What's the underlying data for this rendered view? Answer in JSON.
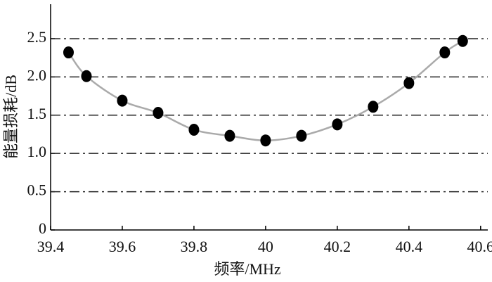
{
  "chart_data": {
    "type": "scatter",
    "x_label": "频率/MHz",
    "y_label": "能量损耗/dB",
    "x": [
      39.45,
      39.5,
      39.6,
      39.7,
      39.8,
      39.9,
      40.0,
      40.1,
      40.2,
      40.3,
      40.4,
      40.5,
      40.55
    ],
    "values": [
      2.32,
      2.01,
      1.69,
      1.53,
      1.31,
      1.23,
      1.17,
      1.23,
      1.38,
      1.61,
      1.92,
      2.32,
      2.47
    ],
    "color": "#000000",
    "line_color": "#aaaaaa",
    "xlim": [
      39.4,
      40.62
    ],
    "ylim": [
      0,
      2.95
    ],
    "xticks": [
      39.4,
      39.6,
      39.8,
      40,
      40.2,
      40.4,
      40.6
    ],
    "yticks": [
      0,
      0.5,
      {
        "value": 1,
        "label": "1.0"
      },
      1.5,
      {
        "value": 2,
        "label": "2.0"
      },
      2.5
    ],
    "grid": true
  }
}
